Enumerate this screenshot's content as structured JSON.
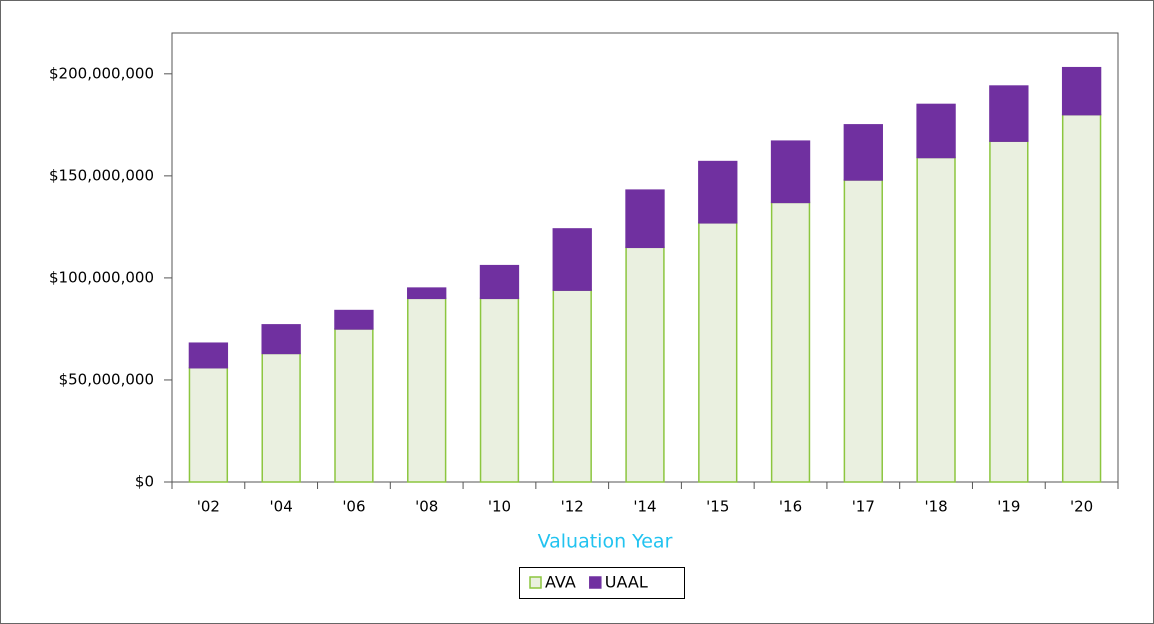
{
  "chart_data": {
    "type": "stacked_bar",
    "x_label": "Valuation Year",
    "categories": [
      "'02",
      "'04",
      "'06",
      "'08",
      "'10",
      "'12",
      "'14",
      "'15",
      "'16",
      "'17",
      "'18",
      "'19",
      "'20"
    ],
    "series": [
      {
        "name": "AVA",
        "color": "#eaf0e0",
        "edge": "#8cc63f",
        "values": [
          56000000,
          63000000,
          75000000,
          90000000,
          90000000,
          94000000,
          115000000,
          127000000,
          137000000,
          148000000,
          159000000,
          167000000,
          180000000
        ]
      },
      {
        "name": "UAAL",
        "color": "#7030a0",
        "edge": "#7030a0",
        "values": [
          12000000,
          14000000,
          9000000,
          5000000,
          16000000,
          30000000,
          28000000,
          30000000,
          30000000,
          27000000,
          26000000,
          27000000,
          23000000
        ]
      }
    ],
    "ylim": [
      0,
      220000000
    ],
    "yticks": [
      {
        "value": 0,
        "label": "$0"
      },
      {
        "value": 50000000,
        "label": "$50,000,000"
      },
      {
        "value": 100000000,
        "label": "$100,000,000"
      },
      {
        "value": 150000000,
        "label": "$150,000,000"
      },
      {
        "value": 200000000,
        "label": "$200,000,000"
      }
    ]
  }
}
